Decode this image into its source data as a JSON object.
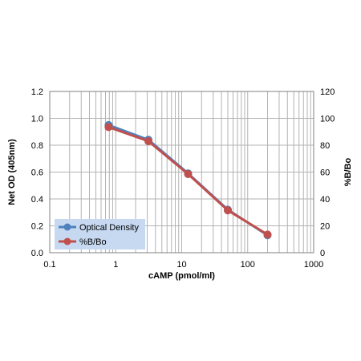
{
  "chart_data": {
    "type": "line",
    "title": "",
    "xlabel": "cAMP (pmol/ml)",
    "ylabel": "Net OD (405nm)",
    "y2label": "%B/Bo",
    "x_scale": "log",
    "xlim": [
      0.1,
      1000
    ],
    "ylim": [
      0,
      1.2
    ],
    "y2lim": [
      0,
      120
    ],
    "x_ticks": [
      "0.1",
      "1",
      "10",
      "100",
      "1000"
    ],
    "y_ticks": [
      "0.0",
      "0.2",
      "0.4",
      "0.6",
      "0.8",
      "1.0",
      "1.2"
    ],
    "y2_ticks": [
      "0",
      "20",
      "40",
      "60",
      "80",
      "100",
      "120"
    ],
    "grid": true,
    "legend_position": "bottom-left",
    "series": [
      {
        "name": "Optical Density",
        "axis": "left",
        "color": "#4f81bd",
        "x": [
          0.78,
          3.13,
          12.5,
          50,
          200
        ],
        "y": [
          0.95,
          0.84,
          0.59,
          0.32,
          0.13
        ]
      },
      {
        "name": "%B/Bo",
        "axis": "right",
        "color": "#c0504d",
        "x": [
          0.78,
          3.13,
          12.5,
          50,
          200
        ],
        "y": [
          93.5,
          83,
          58.5,
          31.5,
          13.5
        ]
      }
    ]
  }
}
